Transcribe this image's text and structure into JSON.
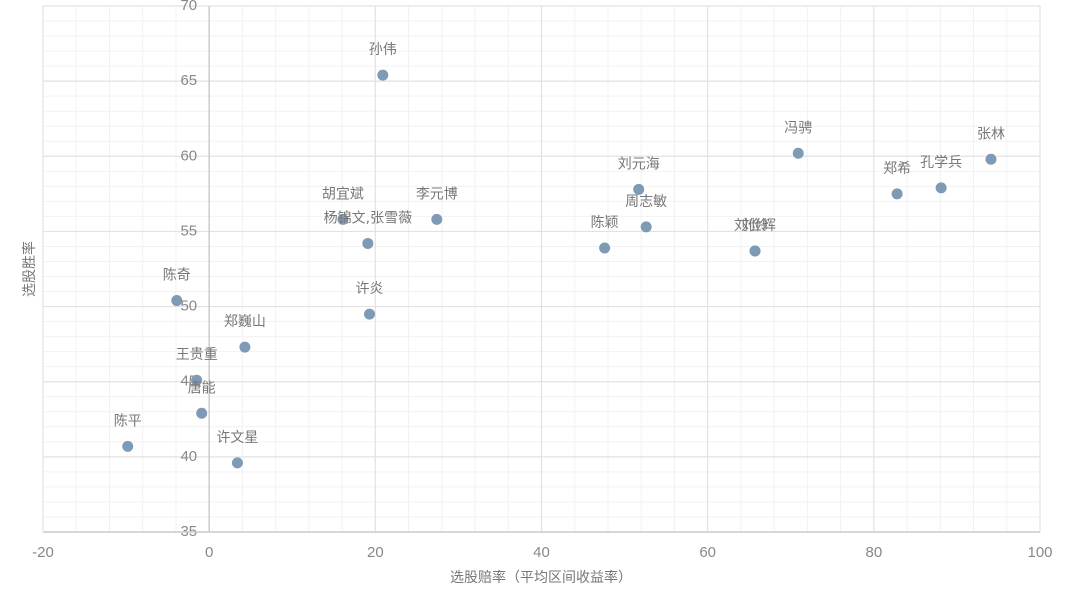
{
  "chart_data": {
    "type": "scatter",
    "x_label": "选股赔率（平均区间收益率）",
    "y_label": "选股胜率",
    "point_labels": [
      "孙伟",
      "冯骋",
      "张林",
      "郑希",
      "孔学兵",
      "刘元海",
      "周志敏",
      "陈颖",
      "刘伶",
      "刘俭辉",
      "胡宜斌",
      "李元博",
      "杨锦文,张雪薇",
      "陈奇",
      "许炎",
      "郑巍山",
      "王贵重",
      "唐能",
      "陈平",
      "许文星"
    ],
    "x": [
      20.9,
      70.9,
      94.1,
      82.8,
      88.1,
      51.7,
      52.6,
      47.6,
      65.7,
      65.7,
      16.1,
      27.4,
      19.1,
      -3.9,
      19.3,
      4.3,
      -1.5,
      -0.9,
      -9.8,
      3.4
    ],
    "values": [
      65.4,
      60.2,
      59.8,
      57.5,
      57.9,
      57.8,
      55.3,
      53.9,
      53.7,
      53.7,
      55.8,
      55.8,
      54.2,
      50.4,
      49.5,
      47.3,
      45.1,
      42.9,
      40.7,
      39.6
    ],
    "color": "#7f9ab5",
    "xlim": [
      -20,
      100
    ],
    "xticks": [
      -20,
      0,
      20,
      40,
      60,
      80,
      100
    ],
    "ylim": [
      35,
      70
    ],
    "yticks": [
      35,
      40,
      45,
      50,
      55,
      60,
      65,
      70
    ],
    "grid": true
  }
}
